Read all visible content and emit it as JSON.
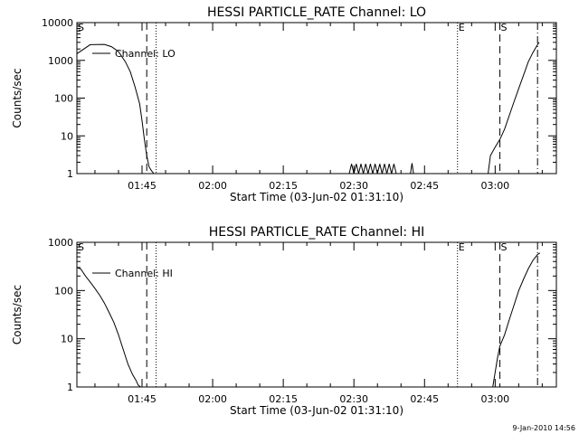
{
  "footer": {
    "timestamp": "9-Jan-2010 14:56"
  },
  "chart_data": [
    {
      "type": "line",
      "title": "HESSI PARTICLE_RATE Channel: LO",
      "xlabel": "Start Time (03-Jun-02 01:31:10)",
      "ylabel": "Counts/sec",
      "yscale": "log",
      "ylim": [
        1,
        10000
      ],
      "xlim": [
        "01:31:10",
        "03:13:00"
      ],
      "x_ticks": [
        "01:45",
        "02:00",
        "02:15",
        "02:30",
        "02:45",
        "03:00"
      ],
      "y_ticks": [
        "1",
        "10",
        "100",
        "1000",
        "10000"
      ],
      "legend": {
        "label": "Channel: LO",
        "placement": "top-left"
      },
      "markers": [
        {
          "label": "S",
          "time": "01:31:10",
          "style": "dashed"
        },
        {
          "label": "",
          "time": "01:46:00",
          "style": "dashed"
        },
        {
          "label": "",
          "time": "01:48:00",
          "style": "dotted"
        },
        {
          "label": "E",
          "time": "02:52:00",
          "style": "dotted"
        },
        {
          "label": "S",
          "time": "03:01:00",
          "style": "dashed"
        },
        {
          "label": "",
          "time": "03:09:00",
          "style": "dash-dot"
        }
      ],
      "series": [
        {
          "x": [
            "01:31:10",
            "01:34:00",
            "01:37:00",
            "01:38:30",
            "01:40:00",
            "01:41:30",
            "01:42:30",
            "01:43:30",
            "01:44:30",
            "01:45:00",
            "01:45:30",
            "01:46:00",
            "01:46:30",
            "01:47:00",
            "01:47:30"
          ],
          "y": [
            1500,
            2600,
            2650,
            2300,
            1700,
            900,
            500,
            200,
            70,
            25,
            8,
            3,
            1.5,
            1.2,
            1
          ]
        },
        {
          "x": [
            "02:29:00",
            "02:29:30",
            "02:30:00",
            "02:30:30",
            "02:31:00",
            "02:31:30",
            "02:32:00",
            "02:32:30",
            "02:33:00",
            "02:33:30",
            "02:34:00",
            "02:34:30",
            "02:35:00",
            "02:35:30",
            "02:36:00",
            "02:36:30",
            "02:37:00",
            "02:37:30",
            "02:38:00",
            "02:38:30",
            "02:39:00"
          ],
          "y": [
            1,
            1.8,
            1,
            1.8,
            1,
            1.8,
            1,
            1.8,
            1,
            1.8,
            1,
            1.8,
            1,
            1.8,
            1,
            1.8,
            1,
            1.8,
            1,
            1.8,
            1
          ]
        },
        {
          "x": [
            "02:42:00",
            "02:42:20",
            "02:42:40"
          ],
          "y": [
            1,
            1.9,
            1
          ]
        },
        {
          "x": [
            "02:58:30",
            "02:59:00",
            "03:00:00",
            "03:01:00",
            "03:02:00",
            "03:03:00",
            "03:04:00",
            "03:05:00",
            "03:06:00",
            "03:07:00",
            "03:08:00",
            "03:09:00",
            "03:09:20"
          ],
          "y": [
            1,
            3,
            5,
            8,
            15,
            35,
            80,
            180,
            400,
            900,
            1600,
            2600,
            3000
          ]
        }
      ]
    },
    {
      "type": "line",
      "title": "HESSI PARTICLE_RATE Channel: HI",
      "xlabel": "Start Time (03-Jun-02 01:31:10)",
      "ylabel": "Counts/sec",
      "yscale": "log",
      "ylim": [
        1,
        1000
      ],
      "xlim": [
        "01:31:10",
        "03:13:00"
      ],
      "x_ticks": [
        "01:45",
        "02:00",
        "02:15",
        "02:30",
        "02:45",
        "03:00"
      ],
      "y_ticks": [
        "1",
        "10",
        "100",
        "1000"
      ],
      "legend": {
        "label": "Channel: HI",
        "placement": "top-left"
      },
      "markers": [
        {
          "label": "S",
          "time": "01:31:10",
          "style": "dashed"
        },
        {
          "label": "",
          "time": "01:46:00",
          "style": "dashed"
        },
        {
          "label": "",
          "time": "01:48:00",
          "style": "dotted"
        },
        {
          "label": "E",
          "time": "02:52:00",
          "style": "dotted"
        },
        {
          "label": "S",
          "time": "03:01:00",
          "style": "dashed"
        },
        {
          "label": "",
          "time": "03:09:00",
          "style": "dash-dot"
        }
      ],
      "series": [
        {
          "x": [
            "01:31:10",
            "01:32:00",
            "01:33:00",
            "01:34:00",
            "01:35:00",
            "01:36:00",
            "01:37:00",
            "01:38:00",
            "01:39:00",
            "01:40:00",
            "01:41:00",
            "01:42:00",
            "01:43:00",
            "01:43:40",
            "01:44:10",
            "01:44:40"
          ],
          "y": [
            300,
            280,
            200,
            150,
            110,
            80,
            55,
            35,
            22,
            12,
            6,
            3,
            1.8,
            1.4,
            1.1,
            1
          ]
        },
        {
          "x": [
            "02:59:30",
            "03:00:00",
            "03:00:30",
            "03:01:00",
            "03:02:00",
            "03:03:00",
            "03:04:00",
            "03:05:00",
            "03:06:00",
            "03:07:00",
            "03:08:00",
            "03:09:00",
            "03:09:30"
          ],
          "y": [
            1,
            2,
            4,
            7,
            12,
            25,
            50,
            100,
            170,
            280,
            420,
            560,
            600
          ]
        }
      ]
    }
  ]
}
